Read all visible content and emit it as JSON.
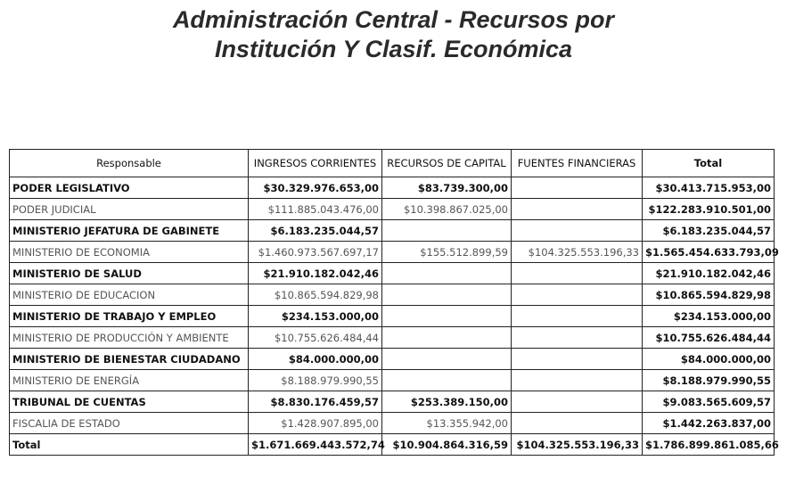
{
  "title_line1": "Administración Central - Recursos por",
  "title_line2": "Institución Y Clasif. Económica",
  "table": {
    "headers": [
      "Responsable",
      "INGRESOS CORRIENTES",
      "RECURSOS DE CAPITAL",
      "FUENTES FINANCIERAS",
      "Total"
    ],
    "rows": [
      [
        "PODER LEGISLATIVO",
        "$30.329.976.653,00",
        "$83.739.300,00",
        "",
        "$30.413.715.953,00"
      ],
      [
        "PODER JUDICIAL",
        "$111.885.043.476,00",
        "$10.398.867.025,00",
        "",
        "$122.283.910.501,00"
      ],
      [
        "MINISTERIO JEFATURA DE GABINETE",
        "$6.183.235.044,57",
        "",
        "",
        "$6.183.235.044,57"
      ],
      [
        "MINISTERIO DE ECONOMIA",
        "$1.460.973.567.697,17",
        "$155.512.899,59",
        "$104.325.553.196,33",
        "$1.565.454.633.793,09"
      ],
      [
        "MINISTERIO DE SALUD",
        "$21.910.182.042,46",
        "",
        "",
        "$21.910.182.042,46"
      ],
      [
        "MINISTERIO DE EDUCACION",
        "$10.865.594.829,98",
        "",
        "",
        "$10.865.594.829,98"
      ],
      [
        "MINISTERIO DE TRABAJO Y EMPLEO",
        "$234.153.000,00",
        "",
        "",
        "$234.153.000,00"
      ],
      [
        "MINISTERIO DE PRODUCCIÓN Y AMBIENTE",
        "$10.755.626.484,44",
        "",
        "",
        "$10.755.626.484,44"
      ],
      [
        "MINISTERIO DE BIENESTAR CIUDADANO",
        "$84.000.000,00",
        "",
        "",
        "$84.000.000,00"
      ],
      [
        "MINISTERIO DE ENERGÍA",
        "$8.188.979.990,55",
        "",
        "",
        "$8.188.979.990,55"
      ],
      [
        "TRIBUNAL DE CUENTAS",
        "$8.830.176.459,57",
        "$253.389.150,00",
        "",
        "$9.083.565.609,57"
      ],
      [
        "FISCALIA DE ESTADO",
        "$1.428.907.895,00",
        "$13.355.942,00",
        "",
        "$1.442.263.837,00"
      ]
    ],
    "total_row": [
      "Total",
      "$1.671.669.443.572,74",
      "$10.904.864.316,59",
      "$104.325.553.196,33",
      "$1.786.899.861.085,66"
    ]
  }
}
